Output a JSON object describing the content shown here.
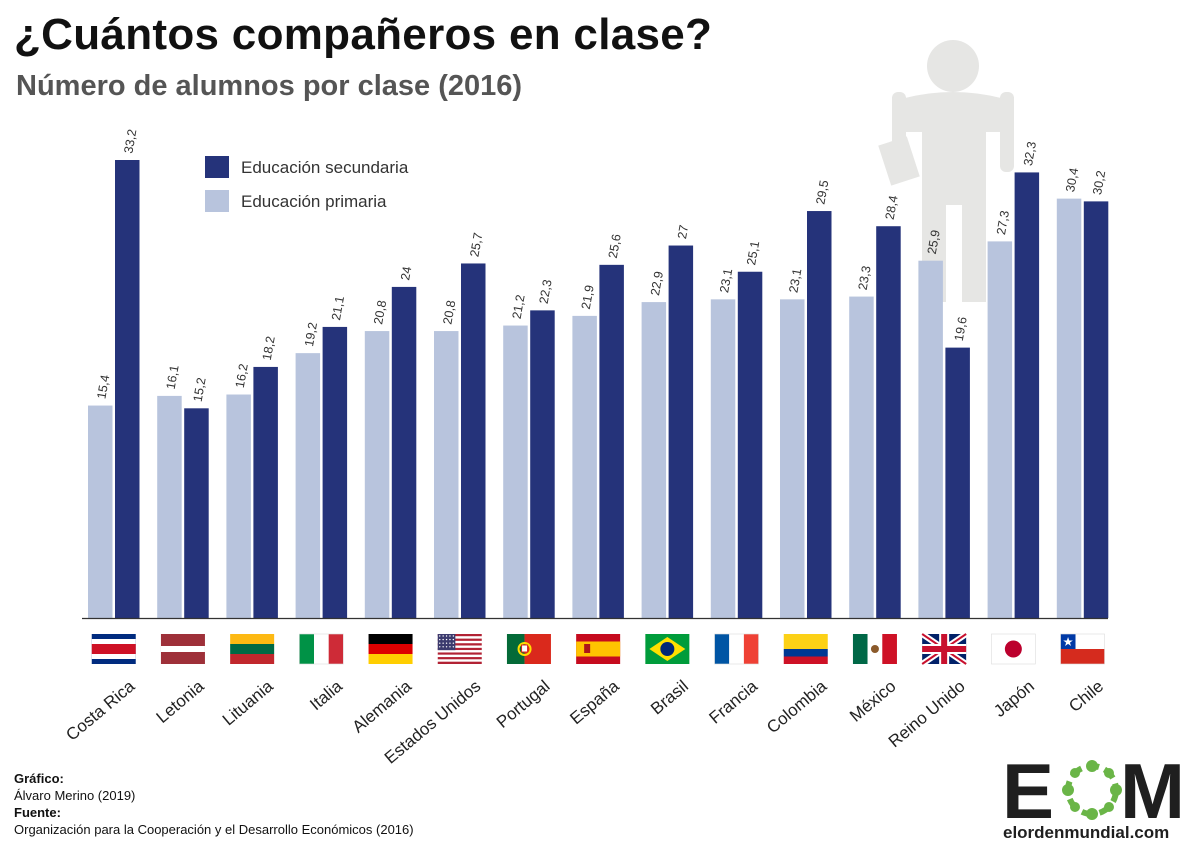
{
  "title": "¿Cuántos compañeros en clase?",
  "subtitle": "Número de alumnos por clase (2016)",
  "legend": {
    "secondary": "Educación secundaria",
    "primary": "Educación primaria"
  },
  "colors": {
    "primary": "#b8c4dd",
    "secondary": "#25337a",
    "silhouette": "#e6e6e4"
  },
  "chart_data": {
    "type": "bar",
    "categories": [
      "Costa Rica",
      "Letonia",
      "Lituania",
      "Italia",
      "Alemania",
      "Estados Unidos",
      "Portugal",
      "España",
      "Brasil",
      "Francia",
      "Colombia",
      "México",
      "Reino Unido",
      "Japón",
      "Chile"
    ],
    "series": [
      {
        "name": "Educación primaria",
        "values": [
          15.4,
          16.1,
          16.2,
          19.2,
          20.8,
          20.8,
          21.2,
          21.9,
          22.9,
          23.1,
          23.1,
          23.3,
          25.9,
          27.3,
          30.4
        ]
      },
      {
        "name": "Educación secundaria",
        "values": [
          33.2,
          15.2,
          18.2,
          21.1,
          24,
          25.7,
          22.3,
          25.6,
          27,
          25.1,
          29.5,
          28.4,
          19.6,
          32.3,
          30.2
        ]
      }
    ],
    "data_labels": {
      "primary": [
        "15,4",
        "16,1",
        "16,2",
        "19,2",
        "20,8",
        "20,8",
        "21,2",
        "21,9",
        "22,9",
        "23,1",
        "23,1",
        "23,3",
        "25,9",
        "27,3",
        "30,4"
      ],
      "secondary": [
        "33,2",
        "15,2",
        "18,2",
        "21,1",
        "24",
        "25,7",
        "22,3",
        "25,6",
        "27",
        "25,1",
        "29,5",
        "28,4",
        "19,6",
        "32,3",
        "30,2"
      ]
    },
    "ylim": [
      0,
      33.2
    ],
    "grid": false,
    "legend_position": "top-left"
  },
  "flags": [
    "costa-rica",
    "latvia",
    "lithuania",
    "italy",
    "germany",
    "usa",
    "portugal",
    "spain",
    "brazil",
    "france",
    "colombia",
    "mexico",
    "uk",
    "japan",
    "chile"
  ],
  "credits": {
    "grafico_label": "Gráfico:",
    "grafico_value": "Álvaro Merino (2019)",
    "fuente_label": "Fuente:",
    "fuente_value": "Organización para la Cooperación y el Desarrollo Económicos (2016)"
  },
  "logo": {
    "letters_left": "E",
    "letters_right": "M",
    "site": "elordenmundial.com"
  }
}
